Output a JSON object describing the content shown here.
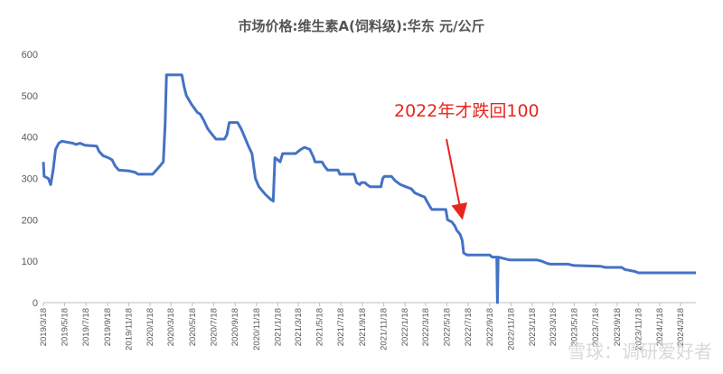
{
  "chart_data": {
    "type": "line",
    "title": "市场价格:维生素A(饲料级):华东 元/公斤",
    "xlabel": "",
    "ylabel": "",
    "ylim": [
      0,
      600
    ],
    "yticks": [
      0,
      100,
      200,
      300,
      400,
      500,
      600
    ],
    "xlim": [
      "2019-03-18",
      "2024-05-01"
    ],
    "xticks": [
      "2019/3/18",
      "2019/5/18",
      "2019/7/18",
      "2019/9/18",
      "2019/11/18",
      "2020/1/18",
      "2020/3/18",
      "2020/5/18",
      "2020/7/18",
      "2020/9/18",
      "2020/11/18",
      "2021/1/18",
      "2021/3/18",
      "2021/5/18",
      "2021/7/18",
      "2021/9/18",
      "2021/11/18",
      "2022/1/18",
      "2022/3/18",
      "2022/5/18",
      "2022/7/18",
      "2022/9/18",
      "2022/11/18",
      "2023/1/18",
      "2023/3/18",
      "2023/5/18",
      "2023/7/18",
      "2023/9/18",
      "2023/11/18",
      "2024/1/18",
      "2024/3/18"
    ],
    "grid": false,
    "legend": "none",
    "line_color": "#4472c4",
    "series": [
      {
        "points": [
          [
            "2019-03-18",
            340
          ],
          [
            "2019-03-20",
            305
          ],
          [
            "2019-04-01",
            300
          ],
          [
            "2019-04-08",
            285
          ],
          [
            "2019-04-15",
            320
          ],
          [
            "2019-04-22",
            370
          ],
          [
            "2019-05-01",
            385
          ],
          [
            "2019-05-10",
            390
          ],
          [
            "2019-06-10",
            385
          ],
          [
            "2019-06-20",
            382
          ],
          [
            "2019-07-01",
            385
          ],
          [
            "2019-07-15",
            380
          ],
          [
            "2019-08-18",
            378
          ],
          [
            "2019-08-25",
            365
          ],
          [
            "2019-09-05",
            355
          ],
          [
            "2019-09-20",
            350
          ],
          [
            "2019-10-01",
            345
          ],
          [
            "2019-10-10",
            330
          ],
          [
            "2019-10-20",
            320
          ],
          [
            "2019-11-20",
            318
          ],
          [
            "2019-12-05",
            315
          ],
          [
            "2019-12-15",
            310
          ],
          [
            "2020-01-25",
            310
          ],
          [
            "2020-02-05",
            320
          ],
          [
            "2020-02-15",
            330
          ],
          [
            "2020-02-25",
            340
          ],
          [
            "2020-03-01",
            430
          ],
          [
            "2020-03-05",
            550
          ],
          [
            "2020-04-18",
            550
          ],
          [
            "2020-04-25",
            520
          ],
          [
            "2020-05-01",
            500
          ],
          [
            "2020-05-15",
            480
          ],
          [
            "2020-06-01",
            460
          ],
          [
            "2020-06-10",
            455
          ],
          [
            "2020-06-20",
            440
          ],
          [
            "2020-07-01",
            420
          ],
          [
            "2020-07-15",
            405
          ],
          [
            "2020-07-25",
            395
          ],
          [
            "2020-08-18",
            395
          ],
          [
            "2020-08-25",
            405
          ],
          [
            "2020-09-01",
            435
          ],
          [
            "2020-09-25",
            435
          ],
          [
            "2020-10-05",
            420
          ],
          [
            "2020-10-15",
            400
          ],
          [
            "2020-10-25",
            380
          ],
          [
            "2020-11-05",
            360
          ],
          [
            "2020-11-15",
            300
          ],
          [
            "2020-11-25",
            280
          ],
          [
            "2020-12-05",
            270
          ],
          [
            "2020-12-15",
            260
          ],
          [
            "2020-12-28",
            250
          ],
          [
            "2021-01-05",
            245
          ],
          [
            "2021-01-10",
            350
          ],
          [
            "2021-01-25",
            340
          ],
          [
            "2021-02-01",
            360
          ],
          [
            "2021-03-10",
            360
          ],
          [
            "2021-03-25",
            370
          ],
          [
            "2021-04-05",
            375
          ],
          [
            "2021-04-20",
            370
          ],
          [
            "2021-05-01",
            350
          ],
          [
            "2021-05-05",
            340
          ],
          [
            "2021-05-25",
            340
          ],
          [
            "2021-06-01",
            330
          ],
          [
            "2021-06-10",
            320
          ],
          [
            "2021-07-10",
            320
          ],
          [
            "2021-07-15",
            310
          ],
          [
            "2021-08-25",
            310
          ],
          [
            "2021-09-01",
            290
          ],
          [
            "2021-09-10",
            285
          ],
          [
            "2021-09-15",
            290
          ],
          [
            "2021-09-25",
            290
          ],
          [
            "2021-10-01",
            285
          ],
          [
            "2021-10-10",
            280
          ],
          [
            "2021-11-10",
            280
          ],
          [
            "2021-11-15",
            300
          ],
          [
            "2021-11-20",
            305
          ],
          [
            "2021-12-10",
            305
          ],
          [
            "2021-12-20",
            295
          ],
          [
            "2022-01-05",
            285
          ],
          [
            "2022-01-20",
            280
          ],
          [
            "2022-02-05",
            275
          ],
          [
            "2022-02-15",
            265
          ],
          [
            "2022-02-28",
            260
          ],
          [
            "2022-03-15",
            255
          ],
          [
            "2022-03-25",
            240
          ],
          [
            "2022-04-01",
            230
          ],
          [
            "2022-04-05",
            225
          ],
          [
            "2022-05-15",
            225
          ],
          [
            "2022-05-20",
            200
          ],
          [
            "2022-06-01",
            195
          ],
          [
            "2022-06-10",
            185
          ],
          [
            "2022-06-15",
            175
          ],
          [
            "2022-06-25",
            165
          ],
          [
            "2022-07-01",
            150
          ],
          [
            "2022-07-05",
            120
          ],
          [
            "2022-07-15",
            115
          ],
          [
            "2022-08-15",
            115
          ],
          [
            "2022-09-18",
            115
          ],
          [
            "2022-09-25",
            110
          ],
          [
            "2022-10-08",
            110
          ],
          [
            "2022-10-10",
            0
          ],
          [
            "2022-10-12",
            110
          ],
          [
            "2022-11-05",
            105
          ],
          [
            "2022-11-15",
            103
          ],
          [
            "2023-02-01",
            103
          ],
          [
            "2023-02-15",
            100
          ],
          [
            "2023-03-01",
            95
          ],
          [
            "2023-03-10",
            93
          ],
          [
            "2023-05-01",
            93
          ],
          [
            "2023-05-15",
            90
          ],
          [
            "2023-08-01",
            88
          ],
          [
            "2023-08-15",
            85
          ],
          [
            "2023-10-01",
            85
          ],
          [
            "2023-10-10",
            80
          ],
          [
            "2023-11-10",
            75
          ],
          [
            "2023-11-18",
            72
          ],
          [
            "2024-05-01",
            72
          ]
        ]
      }
    ],
    "annotation": {
      "text": "2022年才跌回100",
      "arrow_to": [
        "2022-07-01",
        195
      ]
    }
  },
  "watermark": "雪球：调研爱好者"
}
